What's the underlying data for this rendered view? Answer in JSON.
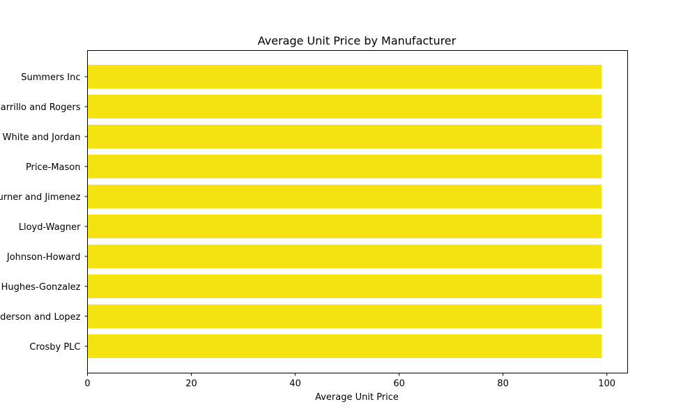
{
  "chart_data": {
    "type": "bar",
    "orientation": "horizontal",
    "title": "Average Unit Price by Manufacturer",
    "xlabel": "Average Unit Price",
    "ylabel": "",
    "categories": [
      "Summers Inc",
      "Carrillo and Rogers",
      "White and Jordan",
      "Price-Mason",
      "Turner and Jimenez",
      "Lloyd-Wagner",
      "Johnson-Howard",
      "Hughes-Gonzalez",
      "Anderson and Lopez",
      "Crosby PLC"
    ],
    "values": [
      99,
      99,
      99,
      99,
      99,
      99,
      99,
      99,
      99,
      99
    ],
    "xlim": [
      0,
      104
    ],
    "xticks": [
      0,
      20,
      40,
      60,
      80,
      100
    ],
    "bar_color": "#f4e311",
    "grid": false,
    "legend": "none"
  }
}
